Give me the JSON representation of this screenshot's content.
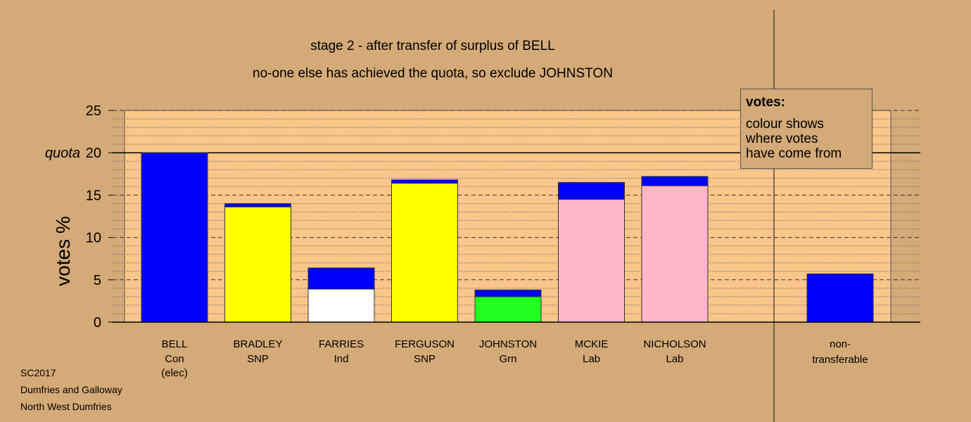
{
  "chart_data": {
    "type": "bar",
    "stacked": true,
    "title": "stage 2 - after transfer of surplus of BELL",
    "subtitle": "no-one else has achieved the quota, so exclude JOHNSTON",
    "ylabel": "votes %",
    "ylim": [
      0,
      25
    ],
    "yticks": [
      0,
      5,
      10,
      15,
      20,
      25
    ],
    "quota": 20,
    "quota_label": "quota",
    "categories": [
      {
        "name": "BELL",
        "party": "Con",
        "note": "(elec)"
      },
      {
        "name": "BRADLEY",
        "party": "SNP",
        "note": ""
      },
      {
        "name": "FARRIES",
        "party": "Ind",
        "note": ""
      },
      {
        "name": "FERGUSON",
        "party": "SNP",
        "note": ""
      },
      {
        "name": "JOHNSTON",
        "party": "Grn",
        "note": ""
      },
      {
        "name": "MCKIE",
        "party": "Lab",
        "note": ""
      },
      {
        "name": "NICHOLSON",
        "party": "Lab",
        "note": ""
      }
    ],
    "non_transferable": {
      "label1": "non-",
      "label2": "transferable",
      "value": 5.7
    },
    "bars": [
      {
        "base": 20.0,
        "base_color": "#0000ff",
        "transfer": 0.0
      },
      {
        "base": 13.6,
        "base_color": "#ffff00",
        "transfer": 0.4
      },
      {
        "base": 3.9,
        "base_color": "#ffffff",
        "transfer": 2.5
      },
      {
        "base": 16.4,
        "base_color": "#ffff00",
        "transfer": 0.4
      },
      {
        "base": 3.0,
        "base_color": "#22ff22",
        "transfer": 0.8
      },
      {
        "base": 14.5,
        "base_color": "#ffb6c8",
        "transfer": 2.0
      },
      {
        "base": 16.1,
        "base_color": "#ffb6c8",
        "transfer": 1.1
      }
    ],
    "transfer_color": "#0000ff",
    "colors": {
      "background": "#d4aa78",
      "plot_area": "#fbc689"
    }
  },
  "legend": {
    "head": "votes:",
    "line1": "colour shows",
    "line2": "where votes",
    "line3": "have come from"
  },
  "footer": {
    "line1": "SC2017",
    "line2": "Dumfries and Galloway",
    "line3": "North West Dumfries"
  }
}
